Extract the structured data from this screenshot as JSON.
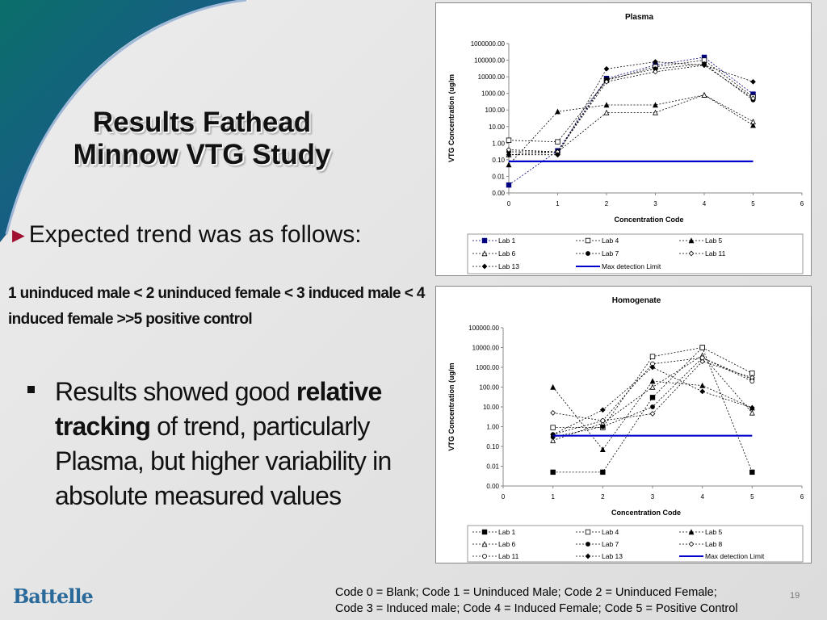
{
  "slide": {
    "title": [
      "Results Fathead",
      "Minnow VTG Study"
    ],
    "bullet_1": "Expected trend was as follows:",
    "trend": "1 uninduced male < 2 uninduced female < 3 induced male < 4 induced female >>5 positive control",
    "bullet_2": [
      "Results showed good ",
      "relative tracking",
      " of trend, particularly Plasma, but higher variability in absolute measured values"
    ],
    "footer": [
      "Code 0 = Blank; Code 1 = Uninduced Male;  Code 2 = Uninduced Female;",
      "Code 3 = Induced male; Code 4 = Induced Female;  Code 5 = Positive Control"
    ],
    "page_number": "19",
    "logo": "Battelle"
  },
  "chart_data": [
    {
      "type": "line",
      "title": "Plasma",
      "x_label": "Concentration Code",
      "y_label": "VTG Concentration (ug/m",
      "log_y": true,
      "legend": "bottom",
      "x": [
        0,
        1,
        2,
        3,
        4,
        5
      ],
      "xlim": [
        0,
        6
      ],
      "xticks": [
        0,
        1,
        2,
        3,
        4,
        5,
        6
      ],
      "ylim": [
        0.001,
        1000000
      ],
      "yticks": [
        {
          "value": 0.001,
          "label": "0.00"
        },
        {
          "value": 0.01,
          "label": "0.01"
        },
        {
          "value": 0.1,
          "label": "0.10"
        },
        {
          "value": 1,
          "label": "1.00"
        },
        {
          "value": 10,
          "label": "10.00"
        },
        {
          "value": 100,
          "label": "100.00"
        },
        {
          "value": 1000,
          "label": "1000.00"
        },
        {
          "value": 10000,
          "label": "10000.00"
        },
        {
          "value": 100000,
          "label": "100000.00"
        },
        {
          "value": 1000000,
          "label": "1000000.00"
        }
      ],
      "series": [
        {
          "name": "Lab 1",
          "color": "#000080",
          "marker": "square",
          "dashed": true,
          "values": [
            0.003,
            0.35,
            8000,
            50000,
            150000,
            900
          ]
        },
        {
          "name": "Lab 4",
          "color": "#000000",
          "marker": "open-square",
          "dashed": true,
          "values": [
            1.5,
            1.2,
            6000,
            40000,
            100000,
            600
          ]
        },
        {
          "name": "Lab 5",
          "color": "#000000",
          "marker": "triangle",
          "dashed": true,
          "values": [
            0.05,
            80,
            200,
            200,
            800,
            12
          ]
        },
        {
          "name": "Lab 6",
          "color": "#000000",
          "marker": "open-triangle",
          "dashed": true,
          "values": [
            0.2,
            0.3,
            70,
            70,
            800,
            20
          ]
        },
        {
          "name": "Lab 7",
          "color": "#000000",
          "marker": "circle",
          "dashed": true,
          "values": [
            0.3,
            0.3,
            7000,
            30000,
            60000,
            400
          ]
        },
        {
          "name": "Lab 11",
          "color": "#000000",
          "marker": "open-diamond",
          "dashed": true,
          "values": [
            0.4,
            0.3,
            5000,
            20000,
            50000,
            500
          ]
        },
        {
          "name": "Lab 13",
          "color": "#000000",
          "marker": "diamond",
          "dashed": true,
          "values": [
            0.2,
            0.2,
            30000,
            80000,
            50000,
            5000
          ]
        },
        {
          "name": "Max detection Limit",
          "color": "#0000cc",
          "marker": "none",
          "dashed": false,
          "values": [
            0.08,
            0.08,
            0.08,
            0.08,
            0.08,
            0.08
          ]
        }
      ]
    },
    {
      "type": "line",
      "title": "Homogenate",
      "x_label": "Concentration Code",
      "y_label": "VTG Concentration (ug/m",
      "log_y": true,
      "legend": "bottom",
      "x": [
        1,
        2,
        3,
        4,
        5
      ],
      "xlim": [
        0,
        6
      ],
      "xticks": [
        0,
        1,
        2,
        3,
        4,
        5,
        6
      ],
      "ylim": [
        0.001,
        100000
      ],
      "yticks": [
        {
          "value": 0.001,
          "label": "0.00"
        },
        {
          "value": 0.01,
          "label": "0.01"
        },
        {
          "value": 0.1,
          "label": "0.10"
        },
        {
          "value": 1,
          "label": "1.00"
        },
        {
          "value": 10,
          "label": "10.00"
        },
        {
          "value": 100,
          "label": "100.00"
        },
        {
          "value": 1000,
          "label": "1000.00"
        },
        {
          "value": 10000,
          "label": "10000.00"
        },
        {
          "value": 100000,
          "label": "100000.00"
        }
      ],
      "series": [
        {
          "name": "Lab 1",
          "color": "#000000",
          "marker": "square",
          "dashed": true,
          "values": [
            0.005,
            0.005,
            30,
            10000,
            0.005
          ]
        },
        {
          "name": "Lab 4",
          "color": "#000000",
          "marker": "open-square",
          "dashed": true,
          "values": [
            0.9,
            0.9,
            3500,
            10000,
            500
          ]
        },
        {
          "name": "Lab 5",
          "color": "#000000",
          "marker": "triangle",
          "dashed": true,
          "values": [
            100,
            0.07,
            200,
            120,
            9
          ]
        },
        {
          "name": "Lab 6",
          "color": "#000000",
          "marker": "open-triangle",
          "dashed": true,
          "values": [
            0.2,
            1.5,
            100,
            4000,
            5
          ]
        },
        {
          "name": "Lab 7",
          "color": "#000000",
          "marker": "circle",
          "dashed": true,
          "values": [
            0.3,
            1,
            10,
            3000,
            250
          ]
        },
        {
          "name": "Lab 8",
          "color": "#000000",
          "marker": "open-diamond",
          "dashed": true,
          "values": [
            5,
            2,
            4.5,
            2000,
            300
          ]
        },
        {
          "name": "Lab 11",
          "color": "#000000",
          "marker": "open-circle",
          "dashed": true,
          "values": [
            0.4,
            2,
            1500,
            3000,
            200
          ]
        },
        {
          "name": "Lab 13",
          "color": "#000000",
          "marker": "diamond",
          "dashed": true,
          "values": [
            0.4,
            7,
            1000,
            60,
            9
          ]
        },
        {
          "name": "Max detection Limit",
          "color": "#0000cc",
          "marker": "none",
          "dashed": false,
          "values": [
            0.35,
            0.35,
            0.35,
            0.35,
            0.35
          ]
        }
      ]
    }
  ]
}
